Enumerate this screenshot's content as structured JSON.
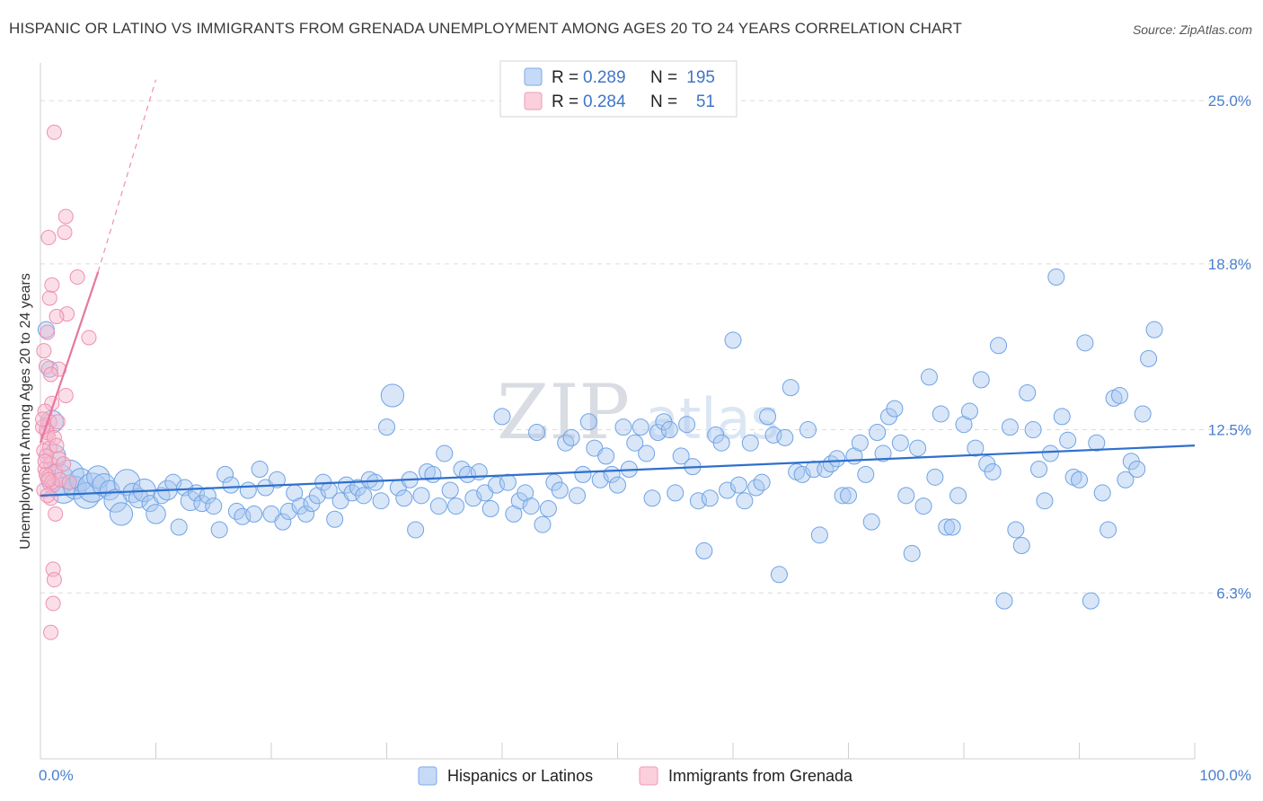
{
  "title": "HISPANIC OR LATINO VS IMMIGRANTS FROM GRENADA UNEMPLOYMENT AMONG AGES 20 TO 24 YEARS CORRELATION CHART",
  "source": "Source: ZipAtlas.com",
  "watermark": {
    "zip": "ZIP",
    "atlas": "atlas"
  },
  "legend": {
    "rows": [
      {
        "r_label": "R =",
        "r_value": "0.289",
        "n_label": "N =",
        "n_value": "195",
        "color": "#a8c8f0"
      },
      {
        "r_label": "R =",
        "r_value": "0.284",
        "n_label": "N =",
        "n_value": "51",
        "color": "#f6b7cb"
      }
    ]
  },
  "bottom_legend": [
    {
      "label": "Hispanics or Latinos",
      "color": "#a8c8f0"
    },
    {
      "label": "Immigrants from Grenada",
      "color": "#f6b7cb"
    }
  ],
  "chart_data": {
    "type": "scatter",
    "title": "HISPANIC OR LATINO VS IMMIGRANTS FROM GRENADA UNEMPLOYMENT AMONG AGES 20 TO 24 YEARS CORRELATION CHART",
    "xlabel": "",
    "ylabel": "Unemployment Among Ages 20 to 24 years",
    "xlim": [
      0,
      100
    ],
    "ylim": [
      0,
      26.3
    ],
    "x_tick_labels": [
      "0.0%",
      "100.0%"
    ],
    "y_ticks": [
      6.3,
      12.5,
      18.8,
      25.0
    ],
    "y_tick_labels": [
      "6.3%",
      "12.5%",
      "18.8%",
      "25.0%"
    ],
    "grid": true,
    "series": [
      {
        "name": "Hispanics or Latinos",
        "color": "#6fa3e6",
        "trend": {
          "x0": 0,
          "y0": 10.0,
          "x1": 100,
          "y1": 11.9
        },
        "points": [
          [
            0.5,
            16.3,
            1
          ],
          [
            0.8,
            14.8,
            1
          ],
          [
            1.0,
            12.8,
            1.4
          ],
          [
            1.2,
            11.5,
            1.4
          ],
          [
            1.5,
            10.6,
            2
          ],
          [
            2.0,
            10.2,
            1.6
          ],
          [
            2.5,
            10.8,
            1.8
          ],
          [
            3.0,
            10.3,
            1.4
          ],
          [
            3.5,
            10.6,
            1.4
          ],
          [
            4.0,
            10.0,
            1.6
          ],
          [
            4.5,
            10.3,
            1.8
          ],
          [
            5.0,
            10.7,
            1.4
          ],
          [
            5.5,
            10.4,
            1.4
          ],
          [
            6.0,
            10.2,
            1.2
          ],
          [
            6.5,
            9.8,
            1.4
          ],
          [
            7.0,
            9.3,
            1.4
          ],
          [
            7.5,
            10.5,
            1.6
          ],
          [
            8.0,
            10.1,
            1.2
          ],
          [
            8.5,
            9.9,
            1.2
          ],
          [
            9.0,
            10.2,
            1.4
          ],
          [
            9.5,
            9.7,
            1
          ],
          [
            10.0,
            9.3,
            1.2
          ],
          [
            10.5,
            10.0,
            1
          ],
          [
            11.0,
            10.2,
            1.2
          ],
          [
            11.5,
            10.5,
            1
          ],
          [
            12.0,
            8.8,
            1
          ],
          [
            12.5,
            10.3,
            1
          ],
          [
            13.0,
            9.8,
            1.2
          ],
          [
            13.5,
            10.1,
            1
          ],
          [
            14.0,
            9.7,
            1
          ],
          [
            14.5,
            10.0,
            1
          ],
          [
            15.0,
            9.6,
            1
          ],
          [
            15.5,
            8.7,
            1
          ],
          [
            16.0,
            10.8,
            1
          ],
          [
            16.5,
            10.4,
            1
          ],
          [
            17.0,
            9.4,
            1
          ],
          [
            17.5,
            9.2,
            1
          ],
          [
            18.0,
            10.2,
            1
          ],
          [
            18.5,
            9.3,
            1
          ],
          [
            19.0,
            11.0,
            1
          ],
          [
            19.5,
            10.3,
            1
          ],
          [
            20.0,
            9.3,
            1
          ],
          [
            20.5,
            10.6,
            1
          ],
          [
            21.0,
            9.0,
            1
          ],
          [
            21.5,
            9.4,
            1
          ],
          [
            22.0,
            10.1,
            1
          ],
          [
            22.5,
            9.6,
            1
          ],
          [
            23.0,
            9.3,
            1
          ],
          [
            23.5,
            9.7,
            1
          ],
          [
            24.0,
            10.0,
            1
          ],
          [
            24.5,
            10.5,
            1
          ],
          [
            25.0,
            10.2,
            1
          ],
          [
            25.5,
            9.1,
            1
          ],
          [
            26.0,
            9.8,
            1
          ],
          [
            26.5,
            10.4,
            1
          ],
          [
            27.0,
            10.1,
            1
          ],
          [
            27.5,
            10.3,
            1
          ],
          [
            28.0,
            10.0,
            1
          ],
          [
            28.5,
            10.6,
            1
          ],
          [
            29.0,
            10.5,
            1
          ],
          [
            29.5,
            9.8,
            1
          ],
          [
            30.0,
            12.6,
            1
          ],
          [
            30.5,
            13.8,
            1.4
          ],
          [
            31.0,
            10.3,
            1
          ],
          [
            31.5,
            9.9,
            1
          ],
          [
            32.0,
            10.6,
            1
          ],
          [
            32.5,
            8.7,
            1
          ],
          [
            33.0,
            10.0,
            1
          ],
          [
            33.5,
            10.9,
            1
          ],
          [
            34.0,
            10.8,
            1
          ],
          [
            34.5,
            9.6,
            1
          ],
          [
            35.0,
            11.6,
            1
          ],
          [
            35.5,
            10.2,
            1
          ],
          [
            36.0,
            9.6,
            1
          ],
          [
            36.5,
            11.0,
            1
          ],
          [
            37.0,
            10.8,
            1
          ],
          [
            37.5,
            9.9,
            1
          ],
          [
            38.0,
            10.9,
            1
          ],
          [
            38.5,
            10.1,
            1
          ],
          [
            39.0,
            9.5,
            1
          ],
          [
            39.5,
            10.4,
            1
          ],
          [
            40.0,
            13.0,
            1
          ],
          [
            40.5,
            10.5,
            1
          ],
          [
            41.0,
            9.3,
            1
          ],
          [
            41.5,
            9.8,
            1
          ],
          [
            42.0,
            10.1,
            1
          ],
          [
            42.5,
            9.6,
            1
          ],
          [
            43.0,
            12.4,
            1
          ],
          [
            43.5,
            8.9,
            1
          ],
          [
            44.0,
            9.5,
            1
          ],
          [
            44.5,
            10.5,
            1
          ],
          [
            45.0,
            10.2,
            1
          ],
          [
            45.5,
            12.0,
            1
          ],
          [
            46.0,
            12.2,
            1
          ],
          [
            46.5,
            10.0,
            1
          ],
          [
            47.0,
            10.8,
            1
          ],
          [
            47.5,
            12.8,
            1
          ],
          [
            48.0,
            11.8,
            1
          ],
          [
            48.5,
            10.6,
            1
          ],
          [
            49.0,
            11.5,
            1
          ],
          [
            49.5,
            10.8,
            1
          ],
          [
            50.0,
            10.4,
            1
          ],
          [
            50.5,
            12.6,
            1
          ],
          [
            51.0,
            11.0,
            1
          ],
          [
            51.5,
            12.0,
            1
          ],
          [
            52.0,
            12.6,
            1
          ],
          [
            52.5,
            11.6,
            1
          ],
          [
            53.0,
            9.9,
            1
          ],
          [
            53.5,
            12.4,
            1
          ],
          [
            54.0,
            12.8,
            1
          ],
          [
            54.5,
            12.5,
            1
          ],
          [
            55.0,
            10.1,
            1
          ],
          [
            55.5,
            11.5,
            1
          ],
          [
            56.0,
            12.7,
            1
          ],
          [
            56.5,
            11.1,
            1
          ],
          [
            57.0,
            9.8,
            1
          ],
          [
            57.5,
            7.9,
            1
          ],
          [
            58.0,
            9.9,
            1
          ],
          [
            58.5,
            12.3,
            1
          ],
          [
            59.0,
            12.0,
            1
          ],
          [
            59.5,
            10.2,
            1
          ],
          [
            60.0,
            15.9,
            1
          ],
          [
            60.5,
            10.4,
            1
          ],
          [
            61.0,
            9.8,
            1
          ],
          [
            61.5,
            12.0,
            1
          ],
          [
            62.0,
            10.3,
            1
          ],
          [
            62.5,
            10.5,
            1
          ],
          [
            63.0,
            13.0,
            1
          ],
          [
            63.5,
            12.3,
            1
          ],
          [
            64.0,
            7.0,
            1
          ],
          [
            64.5,
            12.2,
            1
          ],
          [
            65.0,
            14.1,
            1
          ],
          [
            65.5,
            10.9,
            1
          ],
          [
            66.0,
            10.8,
            1
          ],
          [
            66.5,
            12.5,
            1
          ],
          [
            67.0,
            11.0,
            1
          ],
          [
            67.5,
            8.5,
            1
          ],
          [
            68.0,
            11.0,
            1
          ],
          [
            68.5,
            11.2,
            1
          ],
          [
            69.0,
            11.4,
            1
          ],
          [
            69.5,
            10.0,
            1
          ],
          [
            70.0,
            10.0,
            1
          ],
          [
            70.5,
            11.5,
            1
          ],
          [
            71.0,
            12.0,
            1
          ],
          [
            71.5,
            10.8,
            1
          ],
          [
            72.0,
            9.0,
            1
          ],
          [
            72.5,
            12.4,
            1
          ],
          [
            73.0,
            11.6,
            1
          ],
          [
            73.5,
            13.0,
            1
          ],
          [
            74.0,
            13.3,
            1
          ],
          [
            74.5,
            12.0,
            1
          ],
          [
            75.0,
            10.0,
            1
          ],
          [
            75.5,
            7.8,
            1
          ],
          [
            76.0,
            11.8,
            1
          ],
          [
            76.5,
            9.6,
            1
          ],
          [
            77.0,
            14.5,
            1
          ],
          [
            77.5,
            10.7,
            1
          ],
          [
            78.0,
            13.1,
            1
          ],
          [
            78.5,
            8.8,
            1
          ],
          [
            79.0,
            8.8,
            1
          ],
          [
            79.5,
            10.0,
            1
          ],
          [
            80.0,
            12.7,
            1
          ],
          [
            80.5,
            13.2,
            1
          ],
          [
            81.0,
            11.8,
            1
          ],
          [
            81.5,
            14.4,
            1
          ],
          [
            82.0,
            11.2,
            1
          ],
          [
            82.5,
            10.9,
            1
          ],
          [
            83.0,
            15.7,
            1
          ],
          [
            83.5,
            6.0,
            1
          ],
          [
            84.0,
            12.6,
            1
          ],
          [
            84.5,
            8.7,
            1
          ],
          [
            85.0,
            8.1,
            1
          ],
          [
            85.5,
            13.9,
            1
          ],
          [
            86.0,
            12.5,
            1
          ],
          [
            86.5,
            11.0,
            1
          ],
          [
            87.0,
            9.8,
            1
          ],
          [
            87.5,
            11.6,
            1
          ],
          [
            88.0,
            18.3,
            1
          ],
          [
            88.5,
            13.0,
            1
          ],
          [
            89.0,
            12.1,
            1
          ],
          [
            89.5,
            10.7,
            1
          ],
          [
            90.0,
            10.6,
            1
          ],
          [
            90.5,
            15.8,
            1
          ],
          [
            91.0,
            6.0,
            1
          ],
          [
            91.5,
            12.0,
            1
          ],
          [
            92.0,
            10.1,
            1
          ],
          [
            92.5,
            8.7,
            1
          ],
          [
            93.0,
            13.7,
            1
          ],
          [
            93.5,
            13.8,
            1
          ],
          [
            94.0,
            10.6,
            1
          ],
          [
            94.5,
            11.3,
            1
          ],
          [
            95.0,
            11.0,
            1
          ],
          [
            95.5,
            13.1,
            1
          ],
          [
            96.0,
            15.2,
            1
          ],
          [
            96.5,
            16.3,
            1
          ]
        ]
      },
      {
        "name": "Immigrants from Grenada",
        "color": "#ef8fb0",
        "trend": {
          "x0": 0,
          "y0": 12.0,
          "x1": 5,
          "y1": 18.5,
          "ext_x1": 10,
          "ext_y1": 25.8
        },
        "points": [
          [
            0.4,
            11.0
          ],
          [
            0.5,
            12.5
          ],
          [
            0.6,
            10.7
          ],
          [
            0.8,
            12.8
          ],
          [
            1.0,
            13.5
          ],
          [
            0.3,
            11.7
          ],
          [
            0.7,
            12.2
          ],
          [
            0.9,
            11.2
          ],
          [
            1.1,
            10.4
          ],
          [
            1.3,
            10.9
          ],
          [
            0.5,
            14.9
          ],
          [
            0.6,
            16.2
          ],
          [
            0.8,
            17.5
          ],
          [
            1.0,
            18.0
          ],
          [
            0.7,
            19.8
          ],
          [
            1.2,
            23.8
          ],
          [
            2.2,
            20.6
          ],
          [
            2.1,
            20.0
          ],
          [
            3.2,
            18.3
          ],
          [
            2.3,
            16.9
          ],
          [
            1.4,
            16.8
          ],
          [
            4.2,
            16.0
          ],
          [
            1.6,
            14.8
          ],
          [
            0.9,
            14.6
          ],
          [
            2.2,
            13.8
          ],
          [
            1.5,
            12.8
          ],
          [
            0.4,
            13.2
          ],
          [
            0.6,
            12.4
          ],
          [
            1.2,
            12.2
          ],
          [
            0.8,
            11.8
          ],
          [
            1.6,
            11.4
          ],
          [
            2.0,
            11.2
          ],
          [
            0.5,
            10.8
          ],
          [
            1.0,
            10.5
          ],
          [
            1.7,
            10.6
          ],
          [
            0.3,
            10.2
          ],
          [
            0.9,
            9.9
          ],
          [
            1.3,
            9.3
          ],
          [
            0.6,
            10.0
          ],
          [
            1.4,
            11.9
          ],
          [
            0.2,
            12.6
          ],
          [
            0.5,
            11.5
          ],
          [
            1.1,
            7.2
          ],
          [
            1.2,
            6.8
          ],
          [
            1.1,
            5.9
          ],
          [
            0.9,
            4.8
          ],
          [
            0.4,
            11.3
          ],
          [
            0.7,
            10.6
          ],
          [
            2.5,
            10.5
          ],
          [
            0.2,
            12.9
          ],
          [
            0.3,
            15.5
          ]
        ]
      }
    ]
  }
}
